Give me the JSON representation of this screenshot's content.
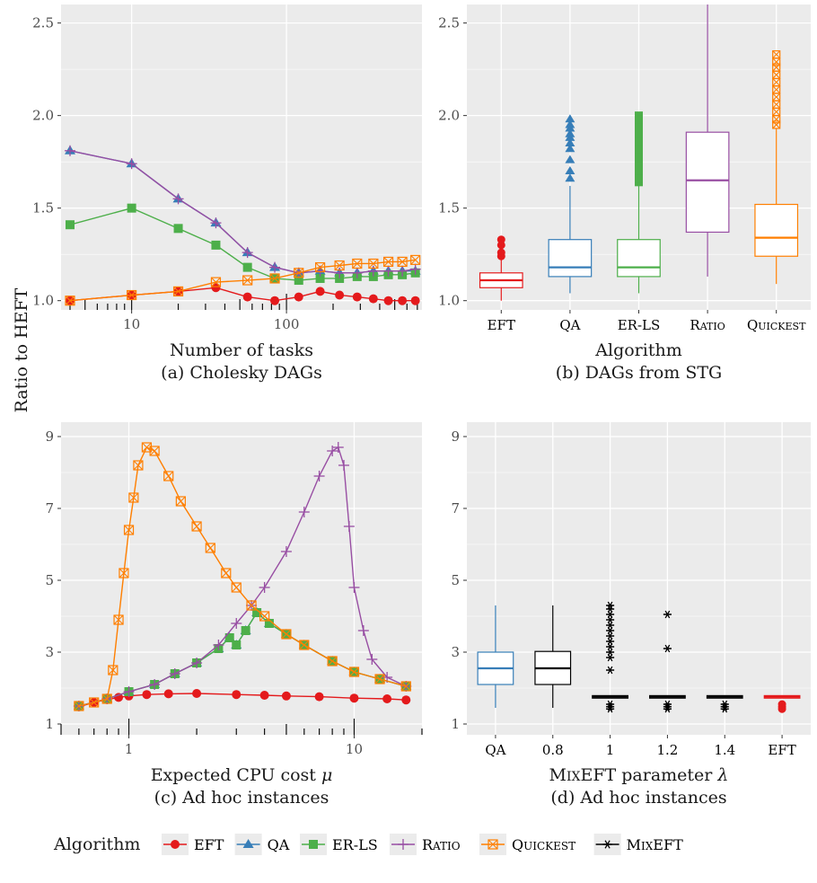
{
  "figure": {
    "ylabel": "Ratio to HEFT",
    "legend": {
      "title": "Algorithm",
      "placement": "bottom",
      "entries": [
        {
          "key": "EFT",
          "label": "EFT",
          "marker": "circle"
        },
        {
          "key": "QA",
          "label": "QA",
          "marker": "triangle"
        },
        {
          "key": "ERLS",
          "label": "ER-LS",
          "marker": "square"
        },
        {
          "key": "RATIO",
          "label": "Ratio",
          "marker": "plus"
        },
        {
          "key": "QUICKEST",
          "label": "Quickest",
          "marker": "boxed-x"
        },
        {
          "key": "MIXEFT",
          "label": "MixEFT",
          "marker": "asterisk"
        }
      ]
    },
    "colors": {
      "EFT": "#e41a1c",
      "QA": "#377eb8",
      "ERLS": "#4daf4a",
      "RATIO": "#984ea3",
      "QUICKEST": "#ff7f00",
      "MIXEFT": "#000000",
      "panel_bg": "#ebebeb",
      "grid": "#ffffff"
    }
  },
  "chart_data": [
    {
      "id": "a",
      "type": "line",
      "caption": "(a) Cholesky DAGs",
      "xlabel": "Number of tasks",
      "ylabel": "Ratio to HEFT",
      "xscale": "log",
      "xlim": [
        3.5,
        750
      ],
      "ylim": [
        0.95,
        2.6
      ],
      "yticks": [
        1.0,
        1.5,
        2.0,
        2.5
      ],
      "ytick_labels": [
        "1.0",
        "1.5",
        "2.0",
        "2.5"
      ],
      "xticks": [
        10,
        100
      ],
      "xtick_labels": [
        "10",
        "100"
      ],
      "grid": true,
      "x": [
        4,
        10,
        20,
        35,
        56,
        84,
        120,
        165,
        220,
        286,
        364,
        455,
        560,
        680
      ],
      "series": [
        {
          "key": "EFT",
          "name": "EFT",
          "values": [
            1.0,
            1.03,
            1.05,
            1.07,
            1.02,
            1.0,
            1.02,
            1.05,
            1.03,
            1.02,
            1.01,
            1.0,
            1.0,
            1.0
          ]
        },
        {
          "key": "QA",
          "name": "QA",
          "values": [
            1.81,
            1.74,
            1.55,
            1.42,
            1.26,
            1.18,
            1.15,
            1.16,
            1.15,
            1.15,
            1.16,
            1.16,
            1.16,
            1.16
          ]
        },
        {
          "key": "ERLS",
          "name": "ER-LS",
          "values": [
            1.41,
            1.5,
            1.39,
            1.3,
            1.18,
            1.12,
            1.11,
            1.12,
            1.12,
            1.13,
            1.13,
            1.14,
            1.14,
            1.15
          ]
        },
        {
          "key": "RATIO",
          "name": "Ratio",
          "values": [
            1.81,
            1.74,
            1.55,
            1.42,
            1.26,
            1.18,
            1.15,
            1.16,
            1.15,
            1.15,
            1.16,
            1.16,
            1.16,
            1.17
          ]
        },
        {
          "key": "QUICKEST",
          "name": "Quickest",
          "values": [
            1.0,
            1.03,
            1.05,
            1.1,
            1.11,
            1.12,
            1.15,
            1.18,
            1.19,
            1.2,
            1.2,
            1.21,
            1.21,
            1.22
          ]
        }
      ]
    },
    {
      "id": "b",
      "type": "box",
      "caption": "(b) DAGs from STG",
      "xlabel": "Algorithm",
      "ylabel": "Ratio to HEFT",
      "ylim": [
        0.95,
        2.6
      ],
      "yticks": [
        1.0,
        1.5,
        2.0,
        2.5
      ],
      "ytick_labels": [
        "1.0",
        "1.5",
        "2.0",
        "2.5"
      ],
      "grid": true,
      "categories": [
        "EFT",
        "QA",
        "ER-LS",
        "Ratio",
        "Quickest"
      ],
      "boxes": [
        {
          "key": "EFT",
          "whislo": 1.0,
          "q1": 1.07,
          "med": 1.11,
          "q3": 1.15,
          "whishi": 1.22,
          "fliers": [
            1.24,
            1.26,
            1.3,
            1.33
          ]
        },
        {
          "key": "QA",
          "whislo": 1.04,
          "q1": 1.13,
          "med": 1.18,
          "q3": 1.33,
          "whishi": 1.62,
          "fliers": [
            1.66,
            1.7,
            1.76,
            1.82,
            1.85,
            1.88,
            1.9,
            1.93,
            1.95,
            1.98
          ]
        },
        {
          "key": "ERLS",
          "whislo": 1.04,
          "q1": 1.13,
          "med": 1.18,
          "q3": 1.33,
          "whishi": 1.62,
          "fliers": [
            1.64,
            1.66,
            1.7,
            1.74,
            1.78,
            1.82,
            1.86,
            1.9,
            1.94,
            1.98,
            2.0
          ]
        },
        {
          "key": "RATIO",
          "whislo": 1.13,
          "q1": 1.37,
          "med": 1.65,
          "q3": 1.91,
          "whishi": 2.6,
          "fliers": []
        },
        {
          "key": "QUICKEST",
          "whislo": 1.09,
          "q1": 1.24,
          "med": 1.34,
          "q3": 1.52,
          "whishi": 1.93,
          "fliers": [
            1.95,
            1.98,
            2.02,
            2.06,
            2.1,
            2.14,
            2.18,
            2.22,
            2.26,
            2.29,
            2.33
          ]
        }
      ]
    },
    {
      "id": "c",
      "type": "line",
      "caption": "(c) Ad hoc instances",
      "xlabel": "Expected CPU cost μ",
      "ylabel": "Ratio to HEFT",
      "xscale": "log",
      "xlim": [
        0.5,
        20
      ],
      "ylim": [
        0.7,
        9.4
      ],
      "yticks": [
        1,
        3,
        5,
        7,
        9
      ],
      "ytick_labels": [
        "1",
        "3",
        "5",
        "7",
        "9"
      ],
      "xticks": [
        1,
        10
      ],
      "xtick_labels": [
        "1",
        "10"
      ],
      "grid": true,
      "series": [
        {
          "key": "EFT",
          "name": "EFT",
          "x": [
            0.6,
            0.7,
            0.8,
            0.9,
            1.0,
            1.2,
            1.5,
            2.0,
            3.0,
            4.0,
            5.0,
            7.0,
            10.0,
            14.0,
            17.0
          ],
          "values": [
            1.48,
            1.6,
            1.68,
            1.74,
            1.78,
            1.82,
            1.84,
            1.85,
            1.82,
            1.8,
            1.78,
            1.76,
            1.72,
            1.7,
            1.67
          ]
        },
        {
          "key": "QA",
          "name": "QA",
          "x": [
            0.6,
            0.8,
            1.0,
            1.3,
            1.6,
            2.0,
            2.5,
            2.8,
            3.0,
            3.3,
            3.7,
            4.2,
            5.0,
            6.0,
            8.0,
            10.0,
            13.0,
            17.0
          ],
          "values": [
            1.5,
            1.7,
            1.9,
            2.1,
            2.4,
            2.7,
            3.1,
            3.4,
            3.2,
            3.6,
            4.1,
            3.8,
            3.5,
            3.2,
            2.75,
            2.45,
            2.25,
            2.05
          ]
        },
        {
          "key": "ERLS",
          "name": "ER-LS",
          "x": [
            0.6,
            0.8,
            1.0,
            1.3,
            1.6,
            2.0,
            2.5,
            2.8,
            3.0,
            3.3,
            3.7,
            4.2,
            5.0,
            6.0,
            8.0,
            10.0,
            13.0,
            17.0
          ],
          "values": [
            1.5,
            1.7,
            1.9,
            2.1,
            2.4,
            2.7,
            3.1,
            3.4,
            3.2,
            3.6,
            4.1,
            3.8,
            3.5,
            3.2,
            2.75,
            2.45,
            2.25,
            2.05
          ]
        },
        {
          "key": "RATIO",
          "name": "Ratio",
          "x": [
            0.6,
            0.8,
            1.0,
            1.3,
            1.6,
            2.0,
            2.5,
            3.0,
            3.5,
            4.0,
            5.0,
            6.0,
            7.0,
            8.0,
            8.5,
            9.0,
            9.5,
            10.0,
            11.0,
            12.0,
            14.0,
            17.0
          ],
          "values": [
            1.5,
            1.7,
            1.9,
            2.1,
            2.4,
            2.7,
            3.2,
            3.8,
            4.3,
            4.8,
            5.8,
            6.9,
            7.9,
            8.6,
            8.7,
            8.2,
            6.5,
            4.8,
            3.6,
            2.8,
            2.3,
            2.05
          ]
        },
        {
          "key": "QUICKEST",
          "name": "Quickest",
          "x": [
            0.6,
            0.7,
            0.8,
            0.85,
            0.9,
            0.95,
            1.0,
            1.05,
            1.1,
            1.2,
            1.3,
            1.5,
            1.7,
            2.0,
            2.3,
            2.7,
            3.0,
            3.5,
            4.0,
            5.0,
            6.0,
            8.0,
            10.0,
            13.0,
            17.0
          ],
          "values": [
            1.5,
            1.6,
            1.7,
            2.5,
            3.9,
            5.2,
            6.4,
            7.3,
            8.2,
            8.7,
            8.6,
            7.9,
            7.2,
            6.5,
            5.9,
            5.2,
            4.8,
            4.3,
            4.0,
            3.5,
            3.2,
            2.75,
            2.45,
            2.25,
            2.05
          ]
        }
      ]
    },
    {
      "id": "d",
      "type": "box",
      "caption": "(d) Ad hoc instances",
      "xlabel": "MixEFT parameter λ",
      "ylabel": "Ratio to HEFT",
      "ylim": [
        0.7,
        9.4
      ],
      "yticks": [
        1,
        3,
        5,
        7,
        9
      ],
      "ytick_labels": [
        "1",
        "3",
        "5",
        "7",
        "9"
      ],
      "grid": true,
      "categories": [
        "QA",
        "0.8",
        "1",
        "1.2",
        "1.4",
        "EFT"
      ],
      "boxes": [
        {
          "key": "QA",
          "whislo": 1.45,
          "q1": 2.1,
          "med": 2.55,
          "q3": 3.0,
          "whishi": 4.3,
          "fliers": []
        },
        {
          "key": "MIXEFT",
          "whislo": 1.45,
          "q1": 2.1,
          "med": 2.55,
          "q3": 3.02,
          "whishi": 4.3,
          "fliers": []
        },
        {
          "key": "MIXEFT",
          "whislo": 1.72,
          "q1": 1.72,
          "med": 1.76,
          "q3": 1.79,
          "whishi": 1.79,
          "fliers": [
            1.42,
            1.48,
            1.55,
            2.5,
            2.85,
            3.0,
            3.15,
            3.3,
            3.45,
            3.6,
            3.75,
            3.9,
            4.05,
            4.2,
            4.3
          ]
        },
        {
          "key": "MIXEFT",
          "whislo": 1.72,
          "q1": 1.72,
          "med": 1.76,
          "q3": 1.79,
          "whishi": 1.79,
          "fliers": [
            1.42,
            1.48,
            1.55,
            3.1,
            4.05
          ]
        },
        {
          "key": "MIXEFT",
          "whislo": 1.72,
          "q1": 1.72,
          "med": 1.76,
          "q3": 1.79,
          "whishi": 1.79,
          "fliers": [
            1.42,
            1.48,
            1.55
          ]
        },
        {
          "key": "EFT",
          "whislo": 1.72,
          "q1": 1.72,
          "med": 1.76,
          "q3": 1.79,
          "whishi": 1.79,
          "fliers": [
            1.42,
            1.48,
            1.55
          ]
        }
      ]
    }
  ]
}
